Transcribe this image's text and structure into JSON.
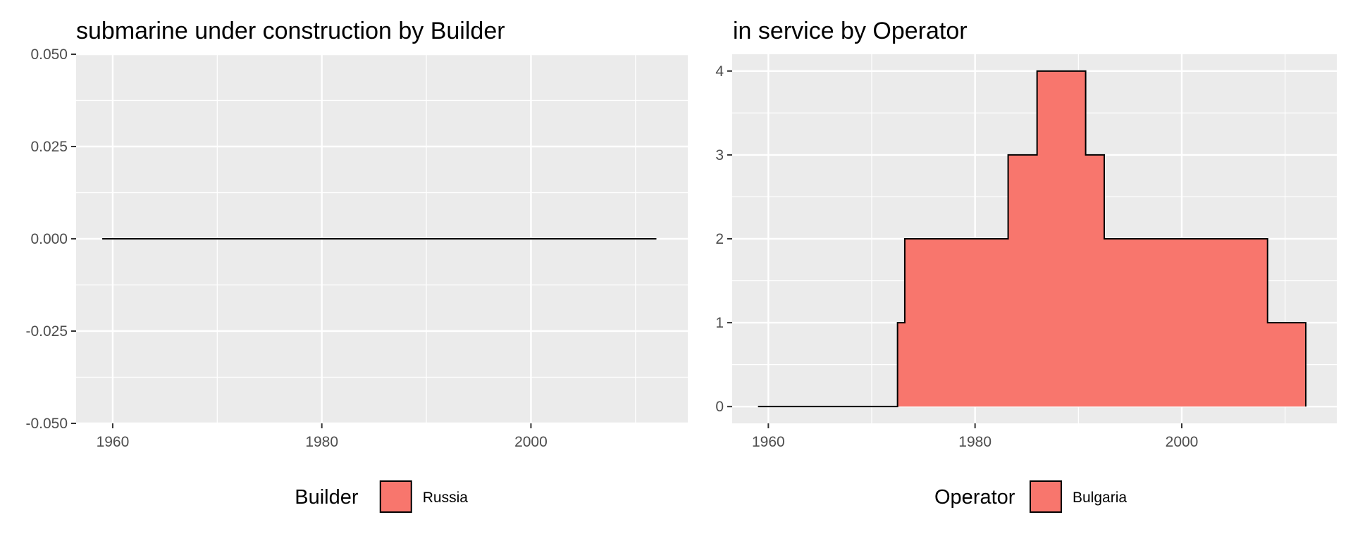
{
  "chart_data": [
    {
      "type": "area",
      "step": true,
      "title": "submarine under construction by Builder",
      "xlabel": "",
      "ylabel": "",
      "xlim": [
        1956.5,
        2015
      ],
      "ylim": [
        -0.05,
        0.05
      ],
      "x_ticks": [
        1960,
        1980,
        2000
      ],
      "x_tick_labels": [
        "1960",
        "1980",
        "2000"
      ],
      "y_ticks": [
        -0.05,
        -0.025,
        0,
        0.025,
        0.05
      ],
      "y_tick_labels": [
        "-0.050",
        "-0.025",
        "0.000",
        "0.025",
        "0.050"
      ],
      "grid": true,
      "legend": {
        "title": "Builder",
        "position": "bottom",
        "entries": [
          {
            "label": "Russia",
            "color": "#F8766D"
          }
        ]
      },
      "series": [
        {
          "name": "Russia",
          "color": "#F8766D",
          "x": [
            1959,
            2012
          ],
          "y": [
            0,
            0
          ]
        }
      ]
    },
    {
      "type": "area",
      "step": true,
      "title": "in service by Operator",
      "xlabel": "",
      "ylabel": "",
      "xlim": [
        1956.5,
        2015
      ],
      "ylim": [
        -0.2,
        4.2
      ],
      "x_ticks": [
        1960,
        1980,
        2000
      ],
      "x_tick_labels": [
        "1960",
        "1980",
        "2000"
      ],
      "y_ticks": [
        0,
        1,
        2,
        3,
        4
      ],
      "y_tick_labels": [
        "0",
        "1",
        "2",
        "3",
        "4"
      ],
      "grid": true,
      "legend": {
        "title": "Operator",
        "position": "bottom",
        "entries": [
          {
            "label": "Bulgaria",
            "color": "#F8766D"
          }
        ]
      },
      "series": [
        {
          "name": "Bulgaria",
          "color": "#F8766D",
          "x": [
            1959,
            1972.5,
            1973.2,
            1983.2,
            1986.0,
            1990.7,
            1992.5,
            2008.3,
            2012.0
          ],
          "y": [
            0,
            1,
            2,
            3,
            4,
            3,
            2,
            1,
            0
          ]
        }
      ]
    }
  ]
}
